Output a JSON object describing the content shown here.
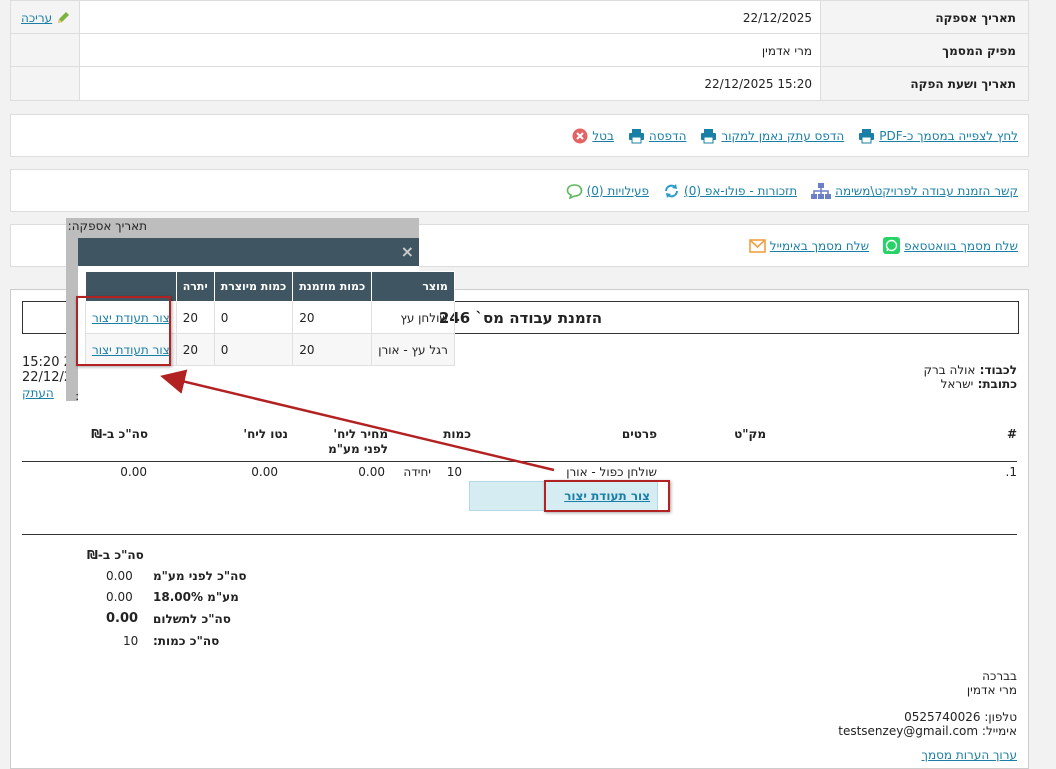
{
  "info": {
    "rows": [
      {
        "label": "תאריך אספקה",
        "value": "22/12/2025",
        "edit": "עריכה"
      },
      {
        "label": "מפיק המסמך",
        "value": "מרי אדמין"
      },
      {
        "label": "תאריך ושעת הפקה",
        "value": "15:20 22/12/2025"
      }
    ]
  },
  "actions": {
    "cancel": "בטל",
    "print": "הדפסה",
    "print_copy": "הדפס עתק נאמן למקור",
    "pdf": "לחץ לצפייה במסמך כ-PDF"
  },
  "activity": {
    "activities": "פעילויות (0)",
    "reminders": "תזכורות - פולו-אפ (0)",
    "link": "קשר הזמנת עבודה לפרויקט\\משימה"
  },
  "send": {
    "email": "שלח מסמך באימייל",
    "whatsapp": "שלח מסמך בוואטסאפ"
  },
  "doc": {
    "title": "הזמנת עבודה מס` 246",
    "to_label": "לכבוד:",
    "to_value": "אולה ברק",
    "address_label": "כתובת:",
    "address_value": "ישראל",
    "time": "15:20 2",
    "date": "22/12/2",
    "copy": "העתק",
    "columns": {
      "num": "#",
      "sku": "מק\"ט",
      "details": "פרטים",
      "qty": "כמות",
      "price_before_vat": "מחיר ליח' לפני מע\"מ",
      "net": "נטו ליח'",
      "total": "סה\"כ ב-₪"
    },
    "line": {
      "num": "1.",
      "details": "שולחן כפול - אורן",
      "qty": "10",
      "unit": "יחידה",
      "price": "0.00",
      "net": "0.00",
      "total": "0.00",
      "production_link": "צור תעודת יצור"
    },
    "summary": {
      "heading": "סה\"כ ב-₪",
      "before_vat_label": "סה\"כ לפני מע\"מ",
      "before_vat_value": "0.00",
      "vat_label": "מע\"מ 18.00%",
      "vat_value": "0.00",
      "to_pay_label": "סה\"כ לתשלום",
      "to_pay_value": "0.00",
      "qty_label": "סה\"כ כמות:",
      "qty_value": "10"
    },
    "footer": {
      "greeting": "בברכה",
      "name": "מרי אדמין",
      "phone_label": "טלפון:",
      "phone": "0525740026",
      "email_label": "אימייל:",
      "email": "testsenzey@gmail.com",
      "edit_notes": "ערוך הערות מסמך"
    }
  },
  "popup": {
    "title_behind": "תאריך אספקה:",
    "behind_text": "סה\"כ ב-",
    "close": "×",
    "columns": {
      "product": "מוצר",
      "ordered": "כמות מוזמנת",
      "produced": "כמות מיוצרת",
      "remaining": "יתרה"
    },
    "rows": [
      {
        "product": "שולחן עץ",
        "ordered": "20",
        "produced": "0",
        "remaining": "20",
        "action": "צור תעודת יצור"
      },
      {
        "product": "רגל עץ - אורן",
        "ordered": "20",
        "produced": "0",
        "remaining": "20",
        "action": "צור תעודת יצור"
      }
    ]
  },
  "colors": {
    "accent": "#1a7fa6",
    "popup_header": "#3f5561",
    "highlight": "#b22222",
    "link_cell_bg": "#d6ecf3"
  }
}
